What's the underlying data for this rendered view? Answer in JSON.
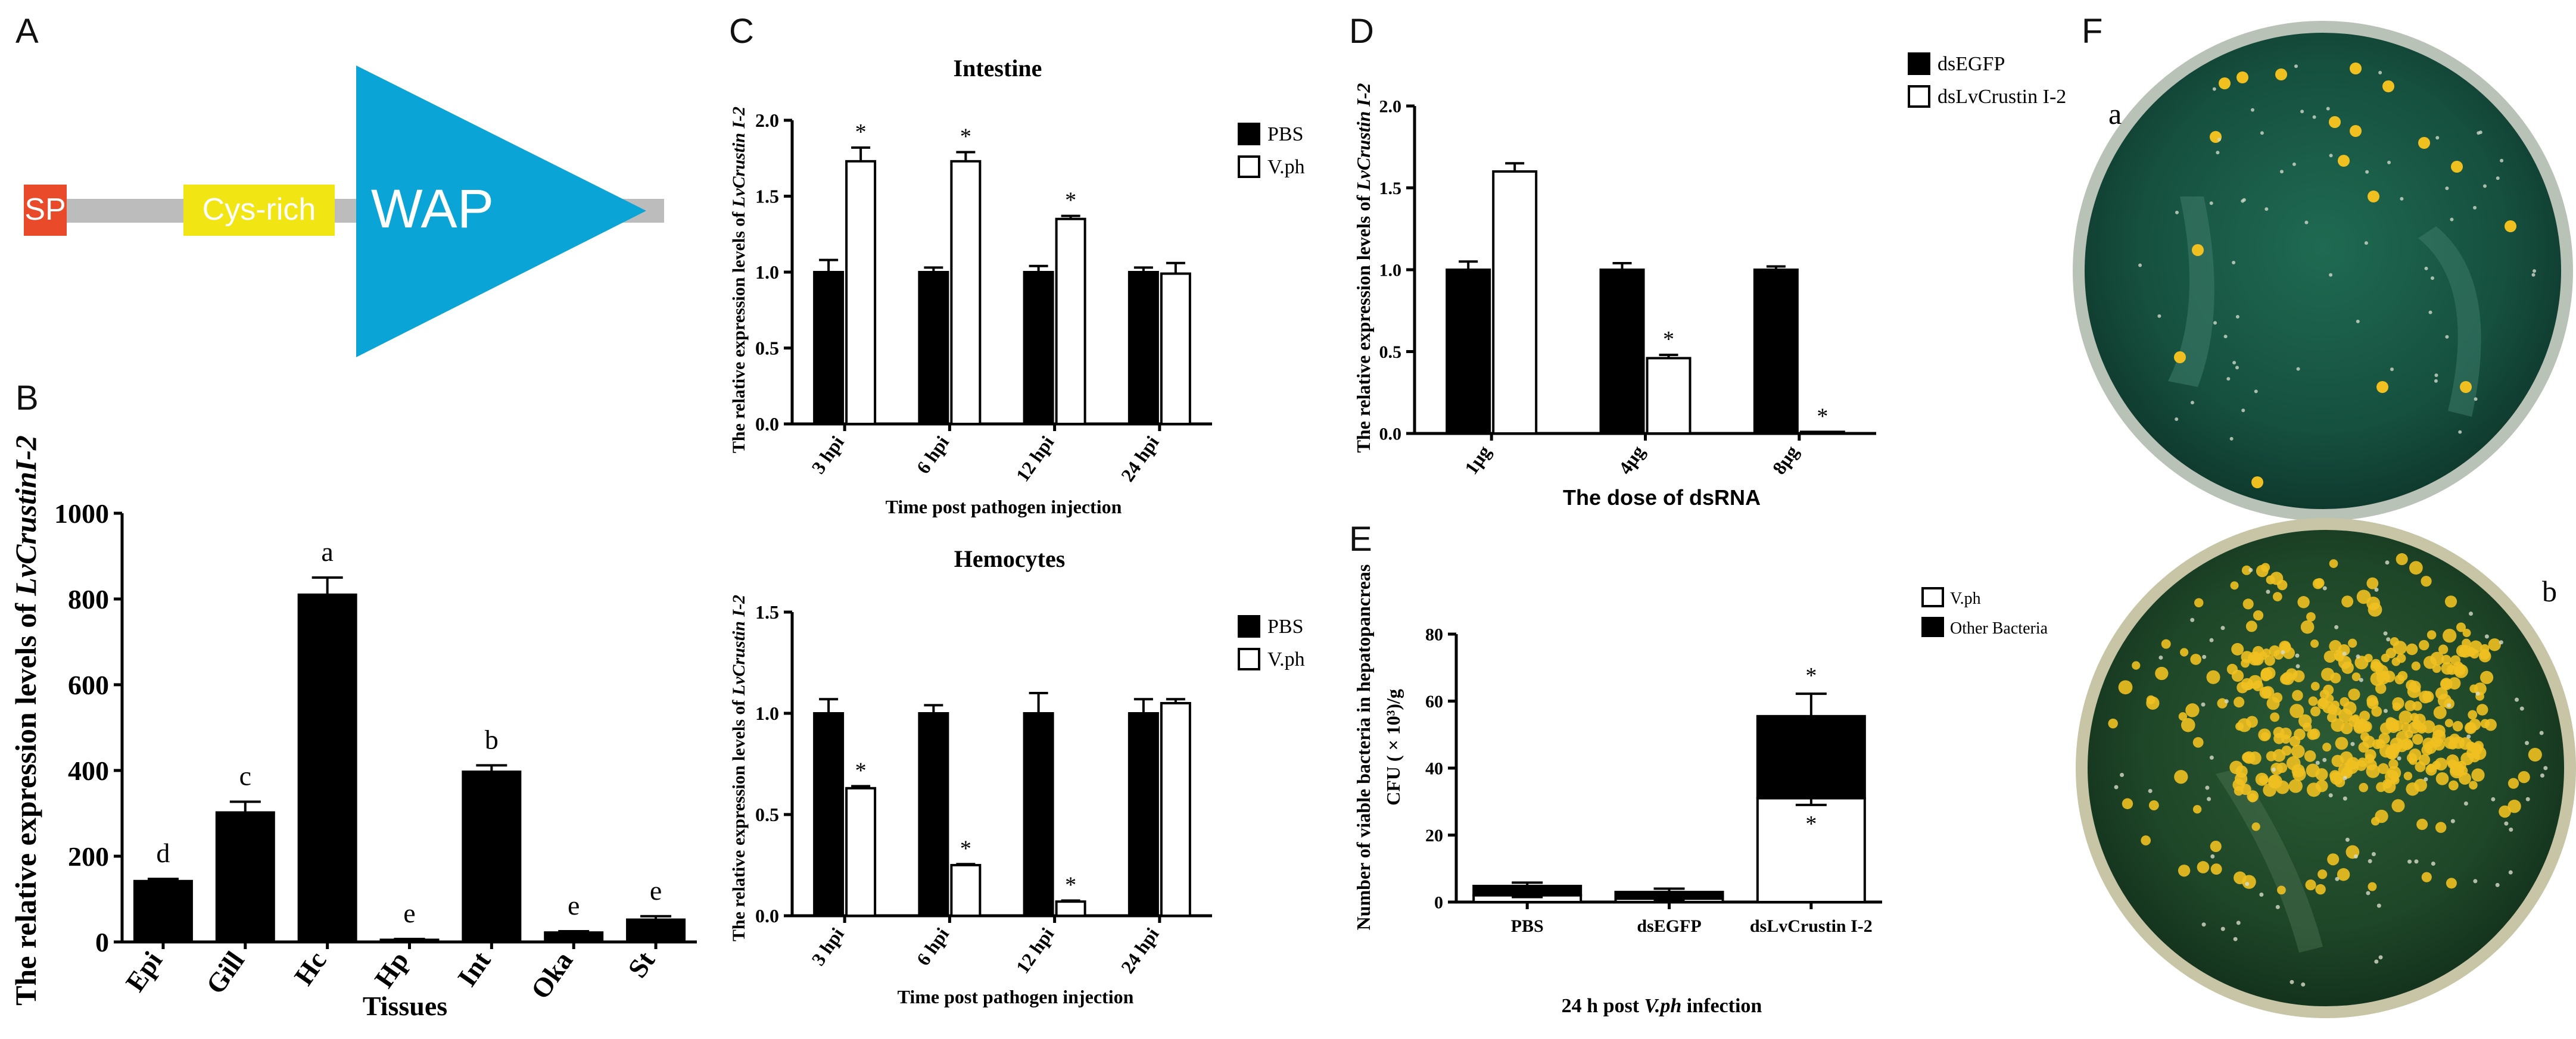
{
  "colors": {
    "sp": "#e94a2a",
    "cys": "#f2e514",
    "wap": "#0aa5d6",
    "backbone": "#bcbcbc",
    "plate_rim": "#cdd2c8",
    "plate_agar": "#1d5b46",
    "colony": "#f0c020"
  },
  "panels": {
    "A": {
      "label": "A",
      "domains": {
        "sp": "SP",
        "cys": "Cys-rich",
        "wap": "WAP"
      }
    },
    "B": {
      "label": "B"
    },
    "C": {
      "label": "C"
    },
    "D": {
      "label": "D"
    },
    "E": {
      "label": "E"
    },
    "F": {
      "label": "F",
      "plate_a": "a",
      "plate_b": "b"
    }
  },
  "chart_data": [
    {
      "id": "B",
      "type": "bar",
      "title": "",
      "xlabel": "Tissues",
      "ylabel_prefix": "The relative expression levels of ",
      "ylabel_gene": "LvCrustinI-2",
      "categories": [
        "Epi",
        "Gill",
        "Hc",
        "Hp",
        "Int",
        "Oka",
        "St"
      ],
      "series": [
        {
          "name": "LvCrustinI-2",
          "values": [
            142,
            302,
            810,
            5,
            397,
            22,
            52
          ],
          "errors": [
            5,
            25,
            40,
            2,
            15,
            3,
            8
          ]
        }
      ],
      "letters": [
        "d",
        "c",
        "a",
        "e",
        "b",
        "e",
        "e"
      ],
      "yticks": [
        "0",
        "200",
        "400",
        "600",
        "800",
        "1000"
      ],
      "ylim": [
        0,
        1000
      ]
    },
    {
      "id": "C1",
      "type": "bar",
      "title": "Intestine",
      "xlabel": "Time post pathogen injection",
      "ylabel_prefix": "The relative expression levels of ",
      "ylabel_gene": "LvCrustin I-2",
      "categories": [
        "3 hpi",
        "6 hpi",
        "12 hpi",
        "24 hpi"
      ],
      "series": [
        {
          "name": "PBS",
          "values": [
            1.0,
            1.0,
            1.0,
            1.0
          ],
          "errors": [
            0.08,
            0.03,
            0.04,
            0.03
          ]
        },
        {
          "name": "V.ph",
          "values": [
            1.73,
            1.73,
            1.35,
            0.99
          ],
          "errors": [
            0.09,
            0.06,
            0.02,
            0.07
          ]
        }
      ],
      "stars": [
        "*",
        "*",
        "*",
        ""
      ],
      "yticks": [
        "0.0",
        "0.5",
        "1.0",
        "1.5",
        "2.0"
      ],
      "ylim": [
        0,
        2.0
      ]
    },
    {
      "id": "C2",
      "type": "bar",
      "title": "Hemocytes",
      "xlabel": "Time post pathogen injection",
      "ylabel_prefix": "The relative expression levels of ",
      "ylabel_gene": "LvCrustin I-2",
      "categories": [
        "3 hpi",
        "6 hpi",
        "12 hpi",
        "24 hpi"
      ],
      "series": [
        {
          "name": "PBS",
          "values": [
            1.0,
            1.0,
            1.0,
            1.0
          ],
          "errors": [
            0.07,
            0.04,
            0.1,
            0.07
          ]
        },
        {
          "name": "V.ph",
          "values": [
            0.63,
            0.25,
            0.07,
            1.05
          ],
          "errors": [
            0.01,
            0.005,
            0.005,
            0.02
          ]
        }
      ],
      "stars": [
        "*",
        "*",
        "*",
        ""
      ],
      "yticks": [
        "0.0",
        "0.5",
        "1.0",
        "1.5"
      ],
      "ylim": [
        0,
        1.5
      ]
    },
    {
      "id": "D",
      "type": "bar",
      "title": "",
      "xlabel": "The dose of dsRNA",
      "ylabel_prefix": "The relative expression levels of ",
      "ylabel_gene": "LvCrustin I-2",
      "categories": [
        "1μg",
        "4μg",
        "8μg"
      ],
      "series": [
        {
          "name": "dsEGFP",
          "values": [
            1.0,
            1.0,
            1.0
          ],
          "errors": [
            0.05,
            0.04,
            0.02
          ]
        },
        {
          "name": "dsLvCrustin I-2",
          "values": [
            1.6,
            0.46,
            0.01
          ],
          "errors": [
            0.05,
            0.02,
            0.0
          ]
        }
      ],
      "stars": [
        "",
        "*",
        "*"
      ],
      "yticks": [
        "0.0",
        "0.5",
        "1.0",
        "1.5",
        "2.0"
      ],
      "ylim": [
        0,
        2.0
      ]
    },
    {
      "id": "E",
      "type": "bar",
      "title": "",
      "xlabel_prefix": "24 h post ",
      "xlabel_species": "V.ph",
      "xlabel_suffix": " infection",
      "ylabel_line1": "Number of viable bacteria in hepatopancreas",
      "ylabel_line2": "CFU ( × 10³)/g",
      "categories": [
        "PBS",
        "dsEGFP",
        "dsLvCrustin I-2"
      ],
      "series": [
        {
          "name": "V.ph",
          "values": [
            2.0,
            1.0,
            31.0
          ],
          "errors": [
            0.5,
            0.5,
            2.0
          ]
        },
        {
          "name": "Other Bacteria",
          "values": [
            2.8,
            2.0,
            24.5
          ],
          "errors": [
            1.0,
            1.0,
            6.7
          ]
        }
      ],
      "stars_top": [
        "",
        "",
        "*"
      ],
      "stars_inner": [
        "",
        "",
        "*"
      ],
      "yticks": [
        "0",
        "20",
        "40",
        "60",
        "80"
      ],
      "ylim": [
        0,
        80
      ]
    }
  ]
}
